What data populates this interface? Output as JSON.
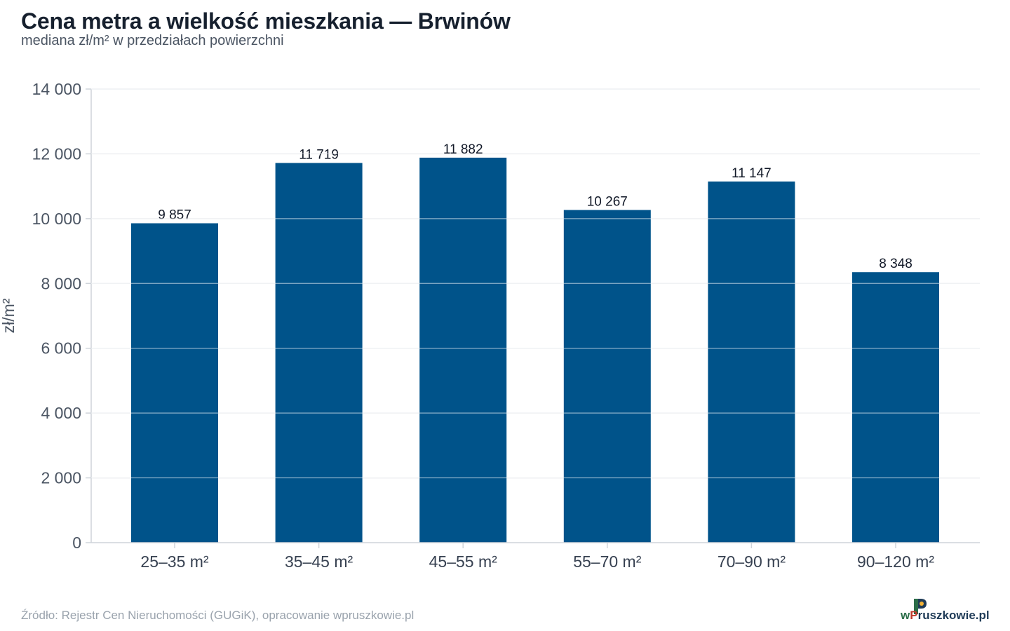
{
  "header": {
    "title": "Cena metra a wielkość mieszkania — Brwinów",
    "subtitle": "mediana zł/m² w przedziałach powierzchni"
  },
  "footer": {
    "source": "Źródło: Rejestr Cen Nieruchomości (GUGiK), opracowanie wpruszkowie.pl"
  },
  "logo": {
    "prefix": "w",
    "accent": "P",
    "suffix": "ruszkowie.pl"
  },
  "colors": {
    "bar": "#00538a",
    "grid": "#e3e6ea",
    "axis": "#cfd4da"
  },
  "chart_data": {
    "type": "bar",
    "categories": [
      "25–35 m²",
      "35–45 m²",
      "45–55 m²",
      "55–70 m²",
      "70–90 m²",
      "90–120 m²"
    ],
    "values": [
      9857,
      11719,
      11882,
      10267,
      11147,
      8348
    ],
    "value_labels": [
      "9 857",
      "11 719",
      "11 882",
      "10 267",
      "11 147",
      "8 348"
    ],
    "title": "Cena metra a wielkość mieszkania — Brwinów",
    "subtitle": "mediana zł/m² w przedziałach powierzchni",
    "xlabel": "",
    "ylabel": "zł/m²",
    "ylim": [
      0,
      14000
    ],
    "yticks": [
      0,
      2000,
      4000,
      6000,
      8000,
      10000,
      12000,
      14000
    ],
    "ytick_labels": [
      "0",
      "2 000",
      "4 000",
      "6 000",
      "8 000",
      "10 000",
      "12 000",
      "14 000"
    ],
    "grid": true
  }
}
